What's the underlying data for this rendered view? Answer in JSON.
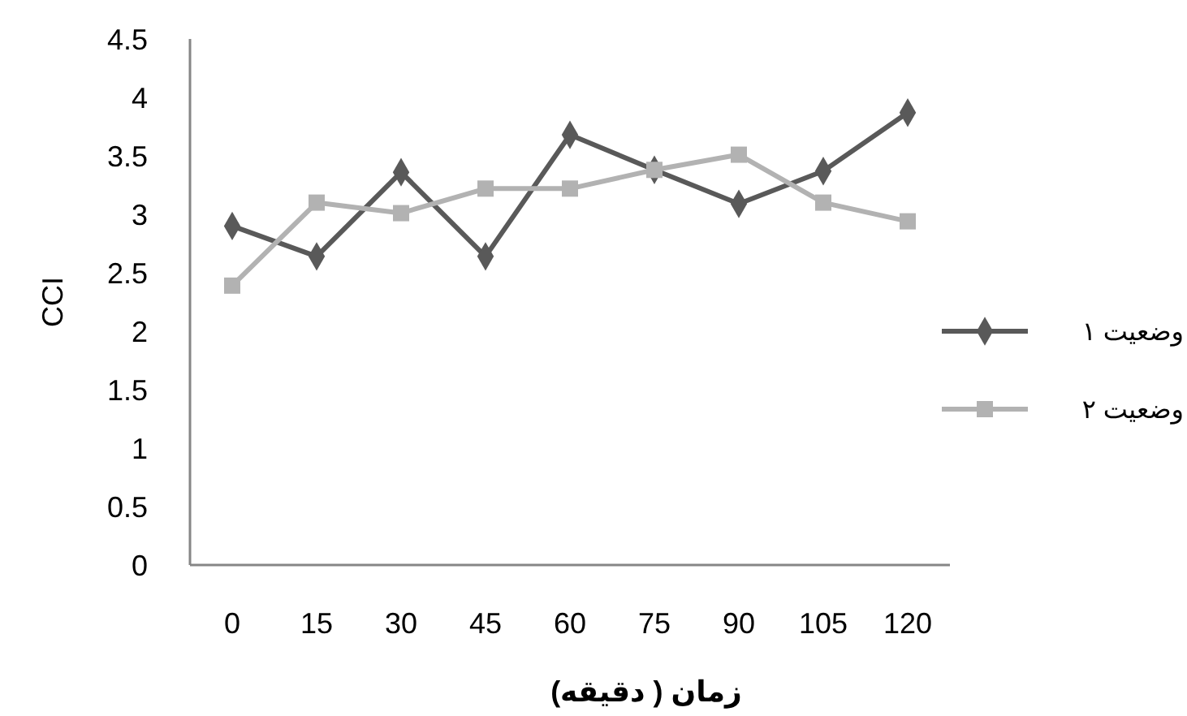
{
  "chart_data": {
    "type": "line",
    "xlabel": "زمان ( دقیقه)",
    "ylabel": "CCI",
    "categories": [
      "0",
      "15",
      "30",
      "45",
      "60",
      "75",
      "90",
      "105",
      "120"
    ],
    "series": [
      {
        "name": "وضعیت ۱",
        "color": "#595959",
        "marker": "diamond",
        "values": [
          2.9,
          2.64,
          3.36,
          2.64,
          3.68,
          3.38,
          3.09,
          3.37,
          3.87
        ]
      },
      {
        "name": "وضعیت ۲",
        "color": "#b2b2b2",
        "marker": "square",
        "values": [
          2.39,
          3.1,
          3.01,
          3.22,
          3.22,
          3.38,
          3.51,
          3.1,
          2.94
        ]
      }
    ],
    "ylim": [
      0,
      4.5
    ],
    "yticks": [
      0,
      0.5,
      1,
      1.5,
      2,
      2.5,
      3,
      3.5,
      4,
      4.5
    ],
    "grid": false,
    "legend": "right"
  }
}
